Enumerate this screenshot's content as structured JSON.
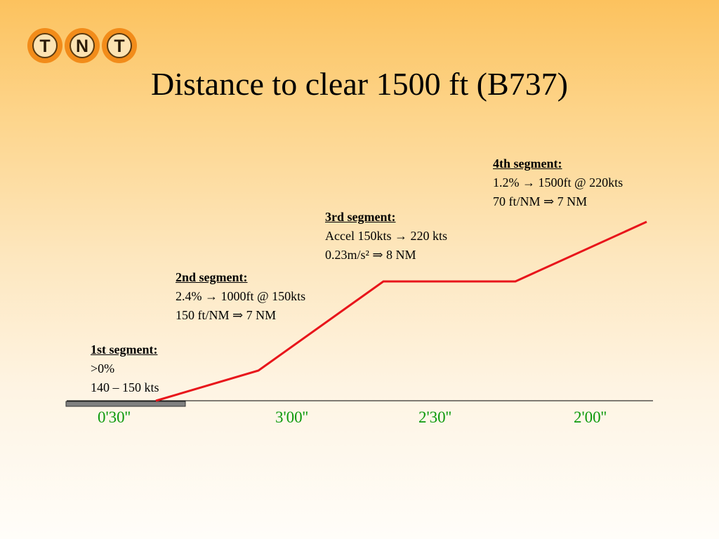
{
  "logo": {
    "letters": [
      "T",
      "N",
      "T"
    ],
    "color": "#f28c1a"
  },
  "title": "Distance to clear 1500 ft (B737)",
  "segments": [
    {
      "heading": "1st segment:",
      "line1": ">0%",
      "line2": "140 – 150 kts"
    },
    {
      "heading": "2nd segment:",
      "line1": "2.4% → 1000ft @ 150kts",
      "line2": "150 ft/NM ⇒ 7 NM"
    },
    {
      "heading": "3rd segment:",
      "line1": "Accel 150kts → 220 kts",
      "line2": "0.23m/s² ⇒ 8 NM"
    },
    {
      "heading": "4th segment:",
      "line1": "1.2% → 1500ft @ 220kts",
      "line2": "70 ft/NM ⇒ 7 NM"
    }
  ],
  "times": [
    "0'30''",
    "3'00''",
    "2'30''",
    "2'00''"
  ],
  "colors": {
    "profile_line": "#e8151b",
    "time_text": "#0d9a0d",
    "runway": "#808080"
  }
}
